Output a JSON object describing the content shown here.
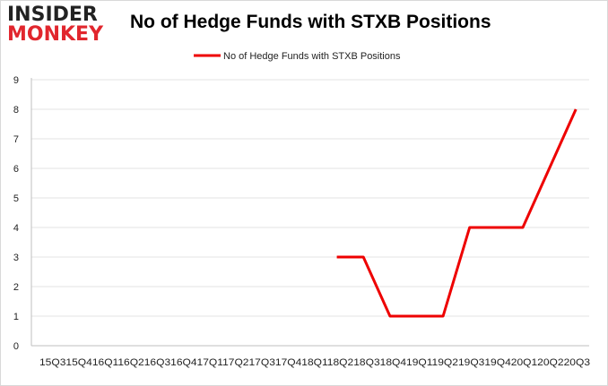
{
  "logo": {
    "top": "INSIDER",
    "bottom": "MONKEY"
  },
  "chart_data": {
    "type": "line",
    "title": "No of Hedge Funds with STXB Positions",
    "categories": [
      "2015Q3",
      "2015Q4",
      "2016Q1",
      "2016Q2",
      "2016Q3",
      "2016Q4",
      "2017Q1",
      "2017Q2",
      "2017Q3",
      "2017Q4",
      "2018Q1",
      "2018Q2",
      "2018Q3",
      "2018Q4",
      "2019Q1",
      "2019Q2",
      "2019Q3",
      "2019Q4",
      "2020Q1",
      "2020Q2",
      "2020Q3"
    ],
    "x_tick_text": "15Q315Q416Q116Q216Q316Q417Q117Q217Q317Q418Q118Q218Q318Q419Q119Q219Q319Q420Q120Q220Q3",
    "series": [
      {
        "name": "No of Hedge Funds with STXB Positions",
        "color": "#ee0000",
        "values": [
          null,
          null,
          null,
          null,
          null,
          null,
          null,
          null,
          null,
          null,
          null,
          3,
          3,
          1,
          1,
          1,
          4,
          4,
          4,
          6,
          8
        ]
      }
    ],
    "yticks": [
      0,
      1,
      2,
      3,
      4,
      5,
      6,
      7,
      8,
      9
    ],
    "ylim": [
      0,
      9
    ],
    "xlabel": "",
    "ylabel": "",
    "grid": "horizontal",
    "legend_position": "top-center"
  }
}
